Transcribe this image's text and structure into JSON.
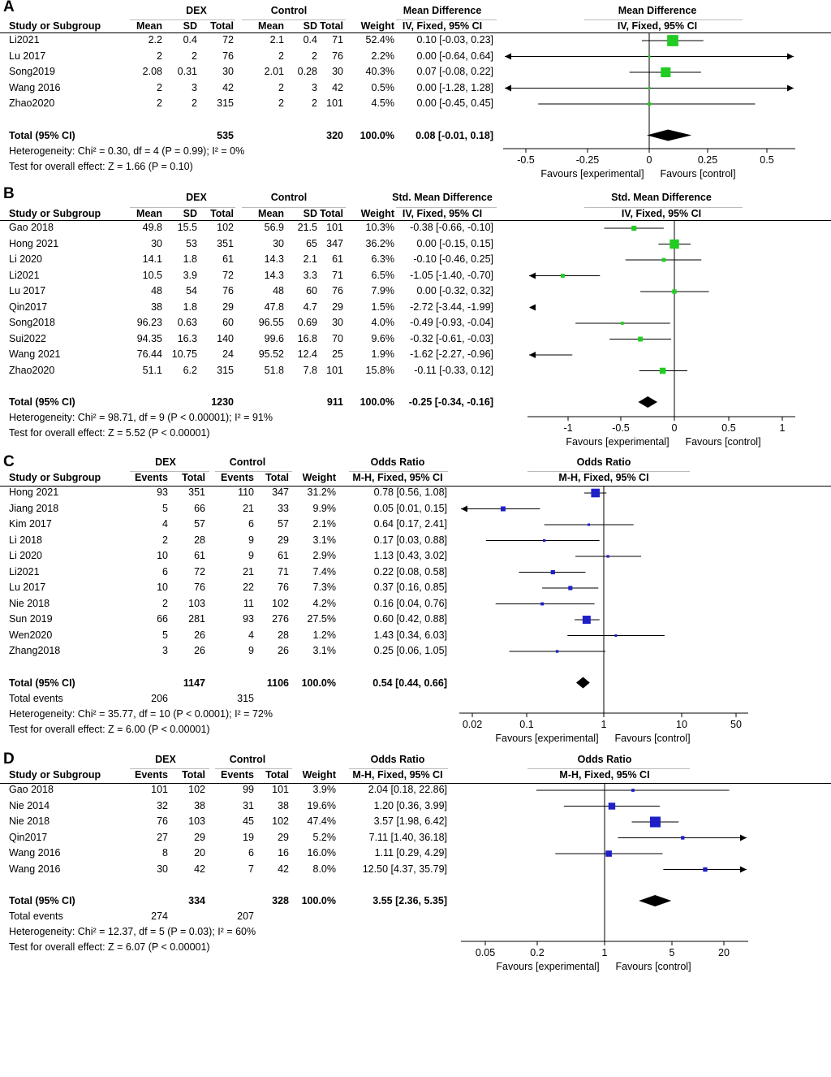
{
  "panels": [
    {
      "id": "A",
      "label": "A",
      "kind": "mean",
      "group1": "DEX",
      "group2": "Control",
      "columns": [
        "Study or Subgroup",
        "Mean",
        "SD",
        "Total",
        "Mean",
        "SD",
        "Total",
        "Weight"
      ],
      "effect_title": "Mean Difference",
      "effect_method": "IV, Fixed, 95% CI",
      "rows": [
        {
          "study": "Li2021",
          "c1": "2.2",
          "c2": "0.4",
          "c3": "72",
          "c4": "2.1",
          "c5": "0.4",
          "c6": "71",
          "weight": "52.4%",
          "ci": "0.10 [-0.03, 0.23]"
        },
        {
          "study": "Lu 2017",
          "c1": "2",
          "c2": "2",
          "c3": "76",
          "c4": "2",
          "c5": "2",
          "c6": "76",
          "weight": "2.2%",
          "ci": "0.00 [-0.64, 0.64]"
        },
        {
          "study": "Song2019",
          "c1": "2.08",
          "c2": "0.31",
          "c3": "30",
          "c4": "2.01",
          "c5": "0.28",
          "c6": "30",
          "weight": "40.3%",
          "ci": "0.07 [-0.08, 0.22]"
        },
        {
          "study": "Wang 2016",
          "c1": "2",
          "c2": "3",
          "c3": "42",
          "c4": "2",
          "c5": "3",
          "c6": "42",
          "weight": "0.5%",
          "ci": "0.00 [-1.28, 1.28]"
        },
        {
          "study": "Zhao2020",
          "c1": "2",
          "c2": "2",
          "c3": "315",
          "c4": "2",
          "c5": "2",
          "c6": "101",
          "weight": "4.5%",
          "ci": "0.00 [-0.45, 0.45]"
        }
      ],
      "total": {
        "label": "Total (95% CI)",
        "t1": "535",
        "t2": "320",
        "weight": "100.0%",
        "ci": "0.08 [-0.01, 0.18]"
      },
      "events": null,
      "heterogeneity": "Heterogeneity: Chi² = 0.30, df = 4 (P = 0.99); I² = 0%",
      "overall": "Test for overall effect: Z = 1.66 (P = 0.10)",
      "ticks": [
        "-0.5",
        "-0.25",
        "0",
        "0.25",
        "0.5"
      ],
      "favours_left": "Favours [experimental]",
      "favours_right": "Favours [control]"
    },
    {
      "id": "B",
      "label": "B",
      "kind": "mean",
      "group1": "DEX",
      "group2": "Control",
      "columns": [
        "Study or Subgroup",
        "Mean",
        "SD",
        "Total",
        "Mean",
        "SD",
        "Total",
        "Weight"
      ],
      "effect_title": "Std. Mean Difference",
      "effect_method": "IV, Fixed, 95% CI",
      "rows": [
        {
          "study": "Gao 2018",
          "c1": "49.8",
          "c2": "15.5",
          "c3": "102",
          "c4": "56.9",
          "c5": "21.5",
          "c6": "101",
          "weight": "10.3%",
          "ci": "-0.38 [-0.66, -0.10]"
        },
        {
          "study": "Hong 2021",
          "c1": "30",
          "c2": "53",
          "c3": "351",
          "c4": "30",
          "c5": "65",
          "c6": "347",
          "weight": "36.2%",
          "ci": "0.00 [-0.15, 0.15]"
        },
        {
          "study": "Li 2020",
          "c1": "14.1",
          "c2": "1.8",
          "c3": "61",
          "c4": "14.3",
          "c5": "2.1",
          "c6": "61",
          "weight": "6.3%",
          "ci": "-0.10 [-0.46, 0.25]"
        },
        {
          "study": "Li2021",
          "c1": "10.5",
          "c2": "3.9",
          "c3": "72",
          "c4": "14.3",
          "c5": "3.3",
          "c6": "71",
          "weight": "6.5%",
          "ci": "-1.05 [-1.40, -0.70]"
        },
        {
          "study": "Lu 2017",
          "c1": "48",
          "c2": "54",
          "c3": "76",
          "c4": "48",
          "c5": "60",
          "c6": "76",
          "weight": "7.9%",
          "ci": "0.00 [-0.32, 0.32]"
        },
        {
          "study": "Qin2017",
          "c1": "38",
          "c2": "1.8",
          "c3": "29",
          "c4": "47.8",
          "c5": "4.7",
          "c6": "29",
          "weight": "1.5%",
          "ci": "-2.72 [-3.44, -1.99]"
        },
        {
          "study": "Song2018",
          "c1": "96.23",
          "c2": "0.63",
          "c3": "60",
          "c4": "96.55",
          "c5": "0.69",
          "c6": "30",
          "weight": "4.0%",
          "ci": "-0.49 [-0.93, -0.04]"
        },
        {
          "study": "Sui2022",
          "c1": "94.35",
          "c2": "16.3",
          "c3": "140",
          "c4": "99.6",
          "c5": "16.8",
          "c6": "70",
          "weight": "9.6%",
          "ci": "-0.32 [-0.61, -0.03]"
        },
        {
          "study": "Wang  2021",
          "c1": "76.44",
          "c2": "10.75",
          "c3": "24",
          "c4": "95.52",
          "c5": "12.4",
          "c6": "25",
          "weight": "1.9%",
          "ci": "-1.62 [-2.27, -0.96]"
        },
        {
          "study": "Zhao2020",
          "c1": "51.1",
          "c2": "6.2",
          "c3": "315",
          "c4": "51.8",
          "c5": "7.8",
          "c6": "101",
          "weight": "15.8%",
          "ci": "-0.11 [-0.33, 0.12]"
        }
      ],
      "total": {
        "label": "Total (95% CI)",
        "t1": "1230",
        "t2": "911",
        "weight": "100.0%",
        "ci": "-0.25 [-0.34, -0.16]"
      },
      "events": null,
      "heterogeneity": "Heterogeneity: Chi² = 98.71, df = 9 (P < 0.00001); I² = 91%",
      "overall": "Test for overall effect: Z = 5.52 (P < 0.00001)",
      "ticks": [
        "-1",
        "-0.5",
        "0",
        "0.5",
        "1"
      ],
      "favours_left": "Favours [experimental]",
      "favours_right": "Favours [control]"
    },
    {
      "id": "C",
      "label": "C",
      "kind": "events",
      "group1": "DEX",
      "group2": "Control",
      "columns": [
        "Study or Subgroup",
        "Events",
        "Total",
        "Events",
        "Total",
        "Weight"
      ],
      "effect_title": "Odds Ratio",
      "effect_method": "M-H, Fixed, 95% CI",
      "rows": [
        {
          "study": "Hong 2021",
          "c1": "93",
          "c2": "351",
          "c3": "110",
          "c4": "347",
          "weight": "31.2%",
          "ci": "0.78 [0.56, 1.08]"
        },
        {
          "study": "Jiang 2018",
          "c1": "5",
          "c2": "66",
          "c3": "21",
          "c4": "33",
          "weight": "9.9%",
          "ci": "0.05 [0.01, 0.15]"
        },
        {
          "study": "Kim 2017",
          "c1": "4",
          "c2": "57",
          "c3": "6",
          "c4": "57",
          "weight": "2.1%",
          "ci": "0.64 [0.17, 2.41]"
        },
        {
          "study": "Li 2018",
          "c1": "2",
          "c2": "28",
          "c3": "9",
          "c4": "29",
          "weight": "3.1%",
          "ci": "0.17 [0.03, 0.88]"
        },
        {
          "study": "Li 2020",
          "c1": "10",
          "c2": "61",
          "c3": "9",
          "c4": "61",
          "weight": "2.9%",
          "ci": "1.13 [0.43, 3.02]"
        },
        {
          "study": "Li2021",
          "c1": "6",
          "c2": "72",
          "c3": "21",
          "c4": "71",
          "weight": "7.4%",
          "ci": "0.22 [0.08, 0.58]"
        },
        {
          "study": "Lu 2017",
          "c1": "10",
          "c2": "76",
          "c3": "22",
          "c4": "76",
          "weight": "7.3%",
          "ci": "0.37 [0.16, 0.85]"
        },
        {
          "study": "Nie 2018",
          "c1": "2",
          "c2": "103",
          "c3": "11",
          "c4": "102",
          "weight": "4.2%",
          "ci": "0.16 [0.04, 0.76]"
        },
        {
          "study": "Sun 2019",
          "c1": "66",
          "c2": "281",
          "c3": "93",
          "c4": "276",
          "weight": "27.5%",
          "ci": "0.60 [0.42, 0.88]"
        },
        {
          "study": "Wen2020",
          "c1": "5",
          "c2": "26",
          "c3": "4",
          "c4": "28",
          "weight": "1.2%",
          "ci": "1.43 [0.34, 6.03]"
        },
        {
          "study": "Zhang2018",
          "c1": "3",
          "c2": "26",
          "c3": "9",
          "c4": "26",
          "weight": "3.1%",
          "ci": "0.25 [0.06, 1.05]"
        }
      ],
      "total": {
        "label": "Total (95% CI)",
        "t1": "1147",
        "t2": "1106",
        "weight": "100.0%",
        "ci": "0.54 [0.44, 0.66]"
      },
      "events": {
        "label": "Total events",
        "e1": "206",
        "e2": "315"
      },
      "heterogeneity": "Heterogeneity: Chi² = 35.77, df = 10 (P < 0.0001); I² = 72%",
      "overall": "Test for overall effect: Z = 6.00 (P < 0.00001)",
      "ticks": [
        "0.02",
        "0.1",
        "1",
        "10",
        "50"
      ],
      "favours_left": "Favours [experimental]",
      "favours_right": "Favours [control]"
    },
    {
      "id": "D",
      "label": "D",
      "kind": "events",
      "group1": "DEX",
      "group2": "Control",
      "columns": [
        "Study or Subgroup",
        "Events",
        "Total",
        "Events",
        "Total",
        "Weight"
      ],
      "effect_title": "Odds Ratio",
      "effect_method": "M-H, Fixed, 95% CI",
      "rows": [
        {
          "study": "Gao 2018",
          "c1": "101",
          "c2": "102",
          "c3": "99",
          "c4": "101",
          "weight": "3.9%",
          "ci": "2.04 [0.18, 22.86]"
        },
        {
          "study": "Nie 2014",
          "c1": "32",
          "c2": "38",
          "c3": "31",
          "c4": "38",
          "weight": "19.6%",
          "ci": "1.20 [0.36, 3.99]"
        },
        {
          "study": "Nie 2018",
          "c1": "76",
          "c2": "103",
          "c3": "45",
          "c4": "102",
          "weight": "47.4%",
          "ci": "3.57 [1.98, 6.42]"
        },
        {
          "study": "Qin2017",
          "c1": "27",
          "c2": "29",
          "c3": "19",
          "c4": "29",
          "weight": "5.2%",
          "ci": "7.11 [1.40, 36.18]"
        },
        {
          "study": "Wang  2016",
          "c1": "8",
          "c2": "20",
          "c3": "6",
          "c4": "16",
          "weight": "16.0%",
          "ci": "1.11 [0.29, 4.29]"
        },
        {
          "study": "Wang 2016",
          "c1": "30",
          "c2": "42",
          "c3": "7",
          "c4": "42",
          "weight": "8.0%",
          "ci": "12.50 [4.37, 35.79]"
        }
      ],
      "total": {
        "label": "Total (95% CI)",
        "t1": "334",
        "t2": "328",
        "weight": "100.0%",
        "ci": "3.55 [2.36, 5.35]"
      },
      "events": {
        "label": "Total events",
        "e1": "274",
        "e2": "207"
      },
      "heterogeneity": "Heterogeneity: Chi² = 12.37, df = 5 (P = 0.03); I² = 60%",
      "overall": "Test for overall effect: Z = 6.07 (P < 0.00001)",
      "ticks": [
        "0.05",
        "0.2",
        "1",
        "5",
        "20"
      ],
      "favours_left": "Favours [experimental]",
      "favours_right": "Favours [control]"
    }
  ],
  "chart_data": [
    {
      "type": "forest",
      "title": "Mean Difference",
      "scale": "linear",
      "xlim": [
        -0.5,
        0.5
      ],
      "marker_color": "#22cc22",
      "series": [
        {
          "name": "Li2021",
          "estimate": 0.1,
          "lower": -0.03,
          "upper": 0.23,
          "weight": 52.4
        },
        {
          "name": "Lu 2017",
          "estimate": 0.0,
          "lower": -0.64,
          "upper": 0.64,
          "weight": 2.2
        },
        {
          "name": "Song2019",
          "estimate": 0.07,
          "lower": -0.08,
          "upper": 0.22,
          "weight": 40.3
        },
        {
          "name": "Wang 2016",
          "estimate": 0.0,
          "lower": -1.28,
          "upper": 1.28,
          "weight": 0.5
        },
        {
          "name": "Zhao2020",
          "estimate": 0.0,
          "lower": -0.45,
          "upper": 0.45,
          "weight": 4.5
        }
      ],
      "pooled": {
        "estimate": 0.08,
        "lower": -0.01,
        "upper": 0.18
      }
    },
    {
      "type": "forest",
      "title": "Std. Mean Difference",
      "scale": "linear",
      "xlim": [
        -1,
        1
      ],
      "marker_color": "#22cc22",
      "series": [
        {
          "name": "Gao 2018",
          "estimate": -0.38,
          "lower": -0.66,
          "upper": -0.1,
          "weight": 10.3
        },
        {
          "name": "Hong 2021",
          "estimate": 0.0,
          "lower": -0.15,
          "upper": 0.15,
          "weight": 36.2
        },
        {
          "name": "Li 2020",
          "estimate": -0.1,
          "lower": -0.46,
          "upper": 0.25,
          "weight": 6.3
        },
        {
          "name": "Li2021",
          "estimate": -1.05,
          "lower": -1.4,
          "upper": -0.7,
          "weight": 6.5
        },
        {
          "name": "Lu 2017",
          "estimate": 0.0,
          "lower": -0.32,
          "upper": 0.32,
          "weight": 7.9
        },
        {
          "name": "Qin2017",
          "estimate": -2.72,
          "lower": -3.44,
          "upper": -1.99,
          "weight": 1.5
        },
        {
          "name": "Song2018",
          "estimate": -0.49,
          "lower": -0.93,
          "upper": -0.04,
          "weight": 4.0
        },
        {
          "name": "Sui2022",
          "estimate": -0.32,
          "lower": -0.61,
          "upper": -0.03,
          "weight": 9.6
        },
        {
          "name": "Wang  2021",
          "estimate": -1.62,
          "lower": -2.27,
          "upper": -0.96,
          "weight": 1.9
        },
        {
          "name": "Zhao2020",
          "estimate": -0.11,
          "lower": -0.33,
          "upper": 0.12,
          "weight": 15.8
        }
      ],
      "pooled": {
        "estimate": -0.25,
        "lower": -0.34,
        "upper": -0.16
      }
    },
    {
      "type": "forest",
      "title": "Odds Ratio",
      "scale": "log",
      "xlim": [
        0.02,
        50
      ],
      "marker_color": "#1f1fc8",
      "series": [
        {
          "name": "Hong 2021",
          "estimate": 0.78,
          "lower": 0.56,
          "upper": 1.08,
          "weight": 31.2
        },
        {
          "name": "Jiang 2018",
          "estimate": 0.05,
          "lower": 0.01,
          "upper": 0.15,
          "weight": 9.9
        },
        {
          "name": "Kim 2017",
          "estimate": 0.64,
          "lower": 0.17,
          "upper": 2.41,
          "weight": 2.1
        },
        {
          "name": "Li 2018",
          "estimate": 0.17,
          "lower": 0.03,
          "upper": 0.88,
          "weight": 3.1
        },
        {
          "name": "Li 2020",
          "estimate": 1.13,
          "lower": 0.43,
          "upper": 3.02,
          "weight": 2.9
        },
        {
          "name": "Li2021",
          "estimate": 0.22,
          "lower": 0.08,
          "upper": 0.58,
          "weight": 7.4
        },
        {
          "name": "Lu 2017",
          "estimate": 0.37,
          "lower": 0.16,
          "upper": 0.85,
          "weight": 7.3
        },
        {
          "name": "Nie 2018",
          "estimate": 0.16,
          "lower": 0.04,
          "upper": 0.76,
          "weight": 4.2
        },
        {
          "name": "Sun 2019",
          "estimate": 0.6,
          "lower": 0.42,
          "upper": 0.88,
          "weight": 27.5
        },
        {
          "name": "Wen2020",
          "estimate": 1.43,
          "lower": 0.34,
          "upper": 6.03,
          "weight": 1.2
        },
        {
          "name": "Zhang2018",
          "estimate": 0.25,
          "lower": 0.06,
          "upper": 1.05,
          "weight": 3.1
        }
      ],
      "pooled": {
        "estimate": 0.54,
        "lower": 0.44,
        "upper": 0.66
      }
    },
    {
      "type": "forest",
      "title": "Odds Ratio",
      "scale": "log",
      "xlim": [
        0.05,
        20
      ],
      "marker_color": "#1f1fc8",
      "series": [
        {
          "name": "Gao 2018",
          "estimate": 2.04,
          "lower": 0.18,
          "upper": 22.86,
          "weight": 3.9
        },
        {
          "name": "Nie 2014",
          "estimate": 1.2,
          "lower": 0.36,
          "upper": 3.99,
          "weight": 19.6
        },
        {
          "name": "Nie 2018",
          "estimate": 3.57,
          "lower": 1.98,
          "upper": 6.42,
          "weight": 47.4
        },
        {
          "name": "Qin2017",
          "estimate": 7.11,
          "lower": 1.4,
          "upper": 36.18,
          "weight": 5.2
        },
        {
          "name": "Wang  2016",
          "estimate": 1.11,
          "lower": 0.29,
          "upper": 4.29,
          "weight": 16.0
        },
        {
          "name": "Wang 2016",
          "estimate": 12.5,
          "lower": 4.37,
          "upper": 35.79,
          "weight": 8.0
        }
      ],
      "pooled": {
        "estimate": 3.55,
        "lower": 2.36,
        "upper": 5.35
      }
    }
  ]
}
